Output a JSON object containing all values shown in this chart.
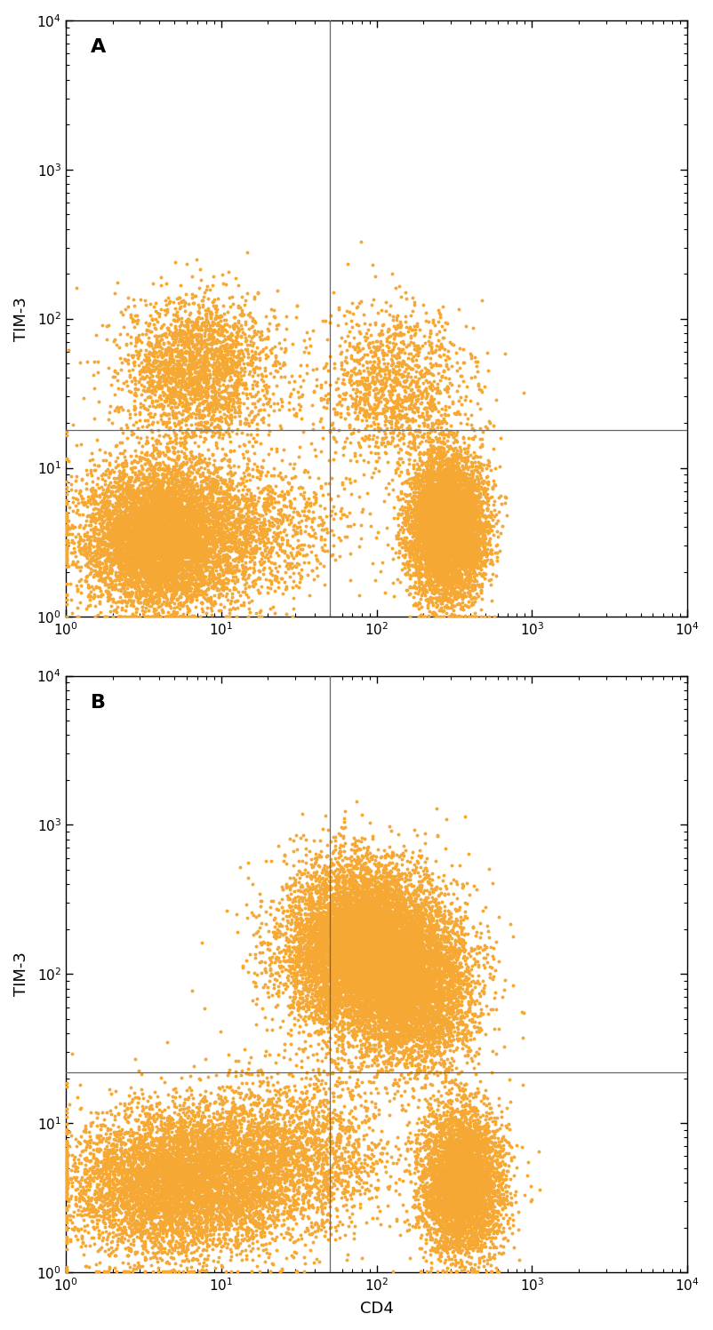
{
  "dot_color": "#F5A833",
  "dot_alpha": 1.0,
  "dot_size": 8.0,
  "xlim": [
    1,
    10000
  ],
  "ylim": [
    1,
    10000
  ],
  "xlabel": "CD4",
  "ylabel": "TIM-3",
  "label_A": "A",
  "label_B": "B",
  "gate_x_A": 50,
  "gate_y_A": 18,
  "gate_x_B": 50,
  "gate_y_B": 22,
  "seed_A": 42,
  "seed_B": 99,
  "n_points_A": 18000,
  "n_points_B": 25000,
  "background_color": "#ffffff",
  "spine_color": "#000000",
  "gate_line_color": "#666666"
}
